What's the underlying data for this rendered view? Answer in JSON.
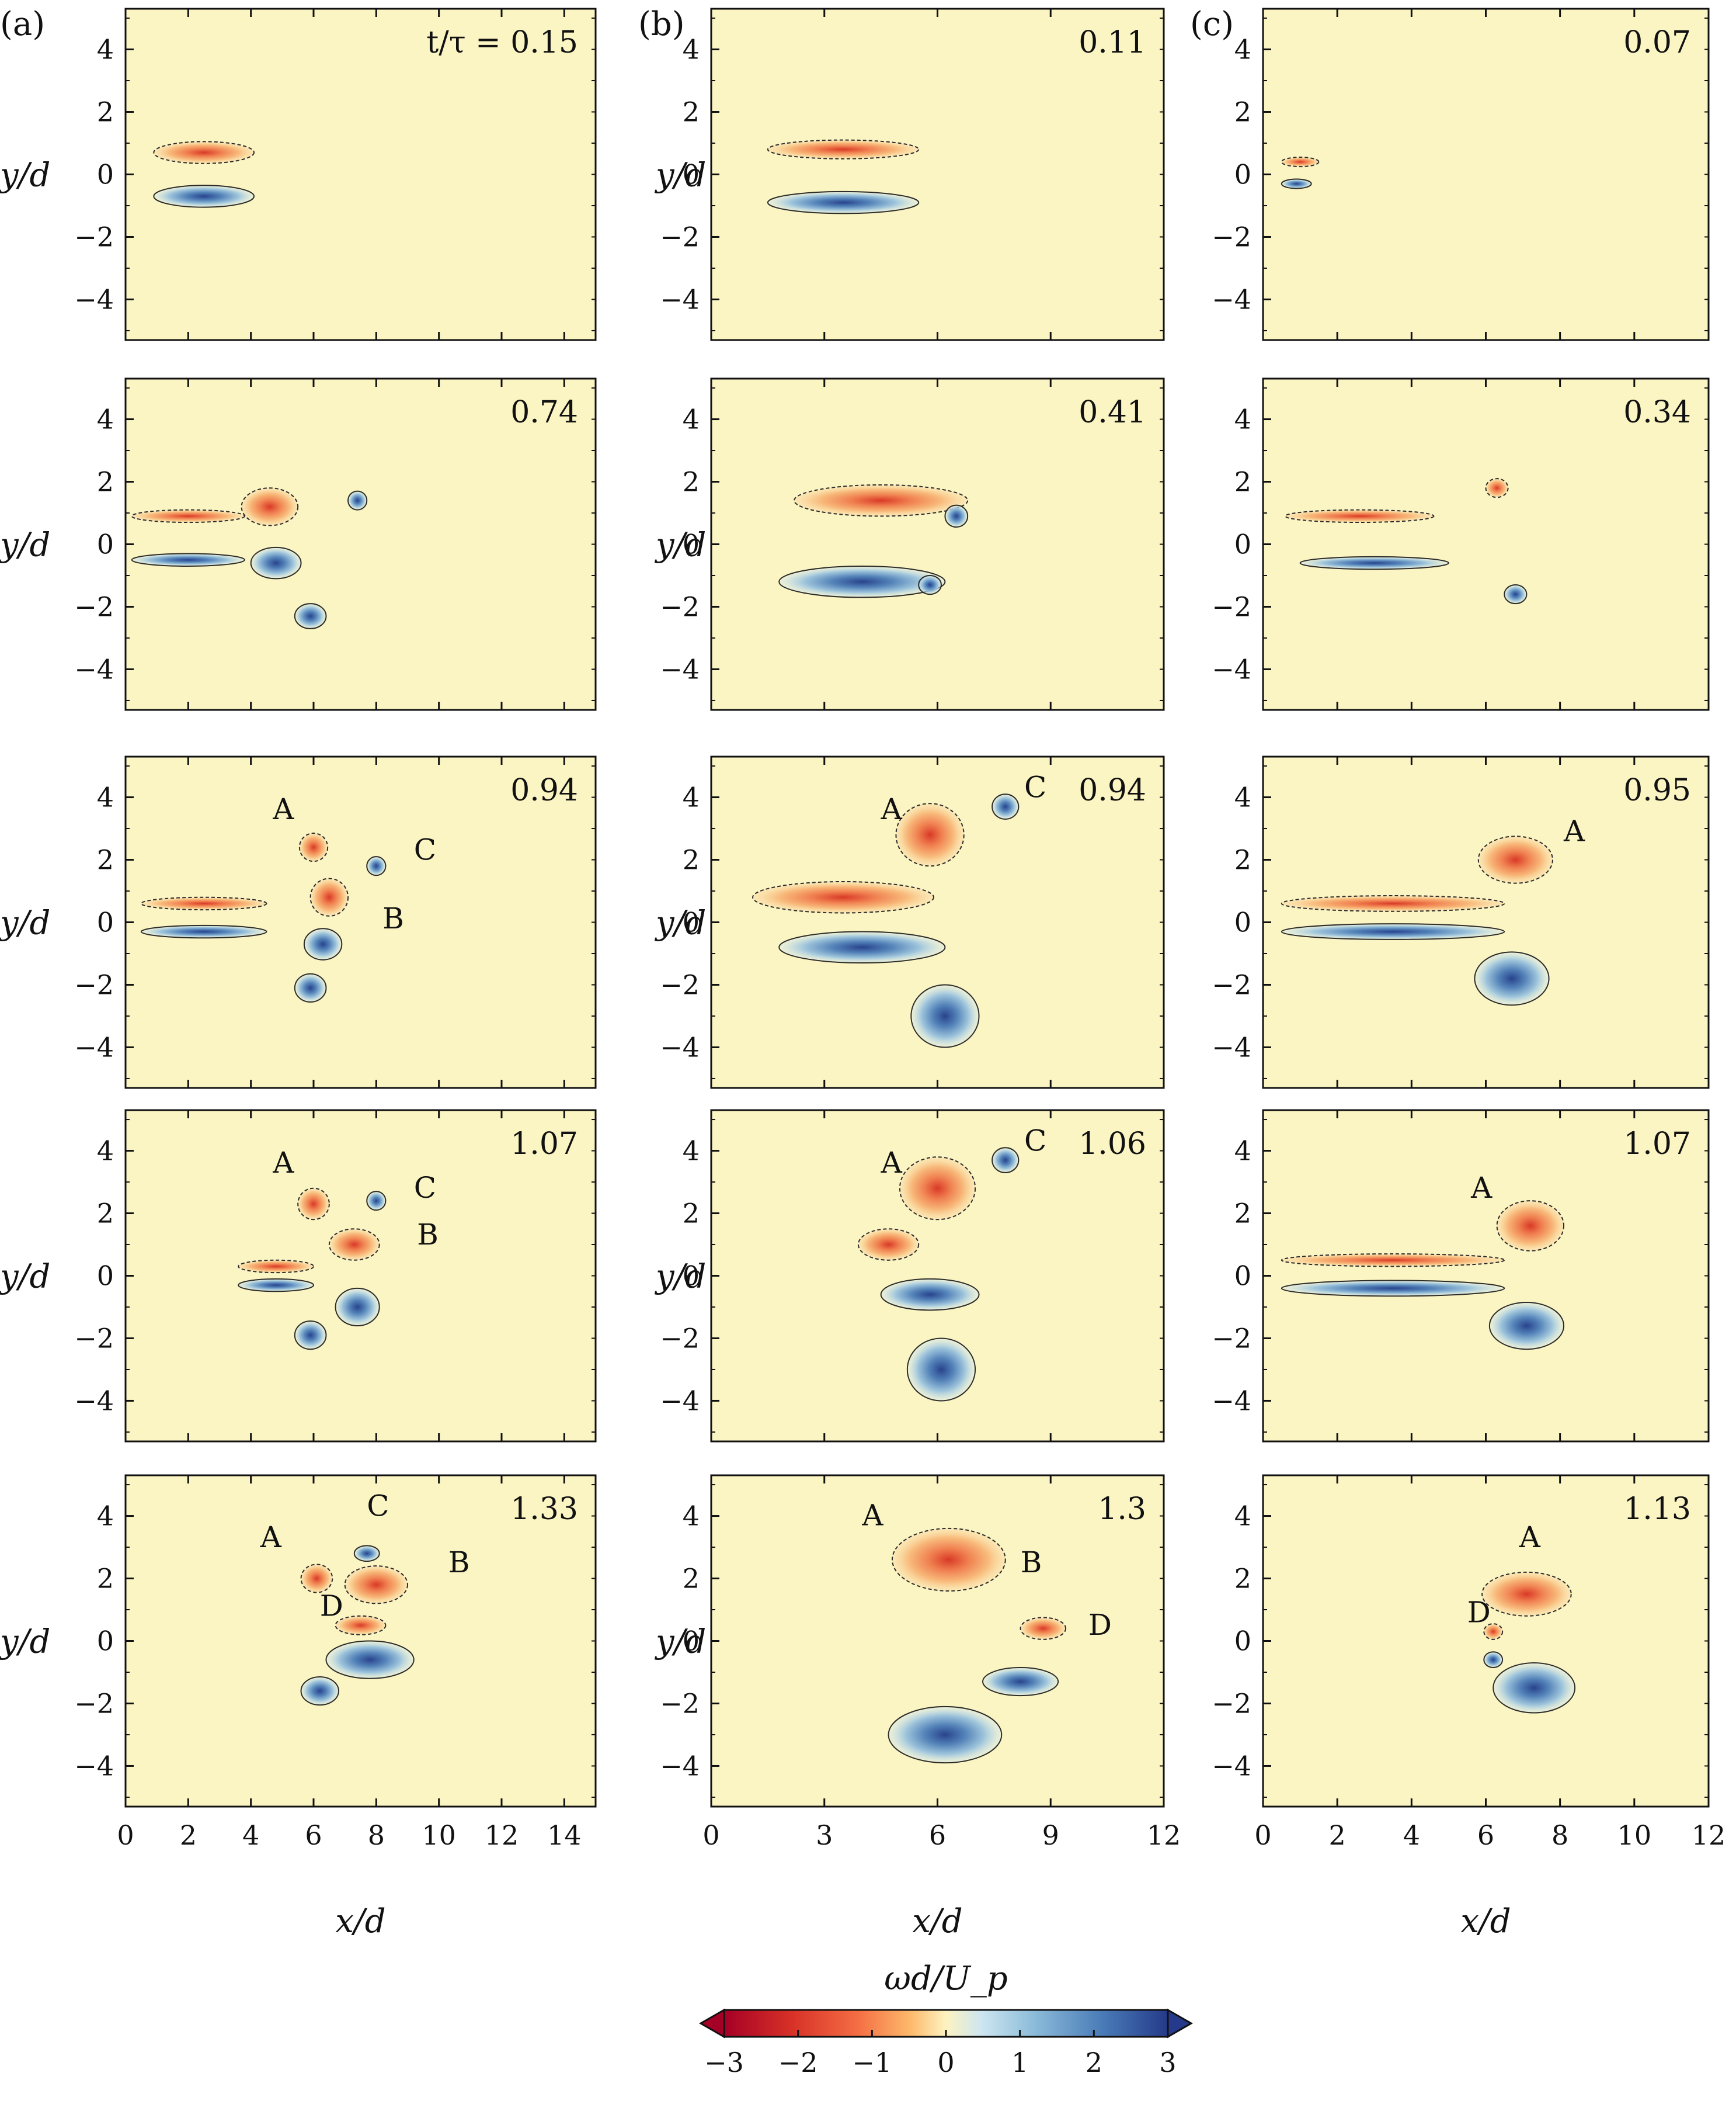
{
  "chart_data": {
    "type": "contour",
    "columns": [
      {
        "tag": "(a)",
        "xlim": [
          0,
          15
        ],
        "xticks": [
          "0",
          "2",
          "4",
          "6",
          "8",
          "10",
          "12",
          "14"
        ],
        "xtick_values": [
          0,
          2,
          4,
          6,
          8,
          10,
          12,
          14
        ],
        "panels": [
          {
            "time": "t/τ = 0.15",
            "labels": []
          },
          {
            "time": "0.74",
            "labels": []
          },
          {
            "time": "0.94",
            "labels": [
              {
                "text": "A",
                "x": 4.7,
                "y": 3.3
              },
              {
                "text": "C",
                "x": 9.2,
                "y": 2.0
              },
              {
                "text": "B",
                "x": 8.2,
                "y": -0.2
              }
            ]
          },
          {
            "time": "1.07",
            "labels": [
              {
                "text": "A",
                "x": 4.7,
                "y": 3.3
              },
              {
                "text": "C",
                "x": 9.2,
                "y": 2.5
              },
              {
                "text": "B",
                "x": 9.3,
                "y": 1.0
              }
            ]
          },
          {
            "time": "1.33",
            "labels": [
              {
                "text": "C",
                "x": 7.7,
                "y": 4.0
              },
              {
                "text": "A",
                "x": 4.3,
                "y": 3.0
              },
              {
                "text": "B",
                "x": 10.3,
                "y": 2.2
              },
              {
                "text": "D",
                "x": 6.2,
                "y": 0.8
              }
            ]
          }
        ]
      },
      {
        "tag": "(b)",
        "xlim": [
          0,
          12
        ],
        "xticks": [
          "0",
          "3",
          "6",
          "9",
          "12"
        ],
        "xtick_values": [
          0,
          3,
          6,
          9,
          12
        ],
        "panels": [
          {
            "time": "0.11",
            "labels": []
          },
          {
            "time": "0.41",
            "labels": []
          },
          {
            "time": "0.94",
            "labels": [
              {
                "text": "A",
                "x": 4.5,
                "y": 3.3
              },
              {
                "text": "C",
                "x": 8.3,
                "y": 4.0
              }
            ]
          },
          {
            "time": "1.06",
            "labels": [
              {
                "text": "A",
                "x": 4.5,
                "y": 3.3
              },
              {
                "text": "C",
                "x": 8.3,
                "y": 4.0
              }
            ]
          },
          {
            "time": "1.3",
            "labels": [
              {
                "text": "A",
                "x": 4.0,
                "y": 3.7
              },
              {
                "text": "B",
                "x": 8.2,
                "y": 2.2
              },
              {
                "text": "D",
                "x": 10.0,
                "y": 0.2
              }
            ]
          }
        ]
      },
      {
        "tag": "(c)",
        "xlim": [
          0,
          12
        ],
        "xticks": [
          "0",
          "2",
          "4",
          "6",
          "8",
          "10",
          "12"
        ],
        "xtick_values": [
          0,
          2,
          4,
          6,
          8,
          10,
          12
        ],
        "panels": [
          {
            "time": "0.07",
            "labels": []
          },
          {
            "time": "0.34",
            "labels": []
          },
          {
            "time": "0.95",
            "labels": [
              {
                "text": "A",
                "x": 8.1,
                "y": 2.6
              }
            ]
          },
          {
            "time": "1.07",
            "labels": [
              {
                "text": "A",
                "x": 5.6,
                "y": 2.5
              }
            ]
          },
          {
            "time": "1.13",
            "labels": [
              {
                "text": "A",
                "x": 6.9,
                "y": 3.0
              },
              {
                "text": "D",
                "x": 5.5,
                "y": 0.6
              }
            ]
          }
        ]
      }
    ],
    "ylim": [
      -5.3,
      5.3
    ],
    "yticks": [
      "4",
      "2",
      "0",
      "−2",
      "−4"
    ],
    "ytick_values": [
      4,
      2,
      0,
      -2,
      -4
    ],
    "ylabel": "y/d",
    "xlabel": "x/d",
    "colorbar": {
      "title": "ωd/U_p",
      "range": [
        -3,
        3
      ],
      "ticks": [
        "−3",
        "−2",
        "−1",
        "0",
        "1",
        "2",
        "3"
      ],
      "tick_values": [
        -3,
        -2,
        -1,
        0,
        1,
        2,
        3
      ]
    },
    "colors": {
      "background": "#fbf5c4",
      "negative": "#d73027",
      "positive": "#2c4f9e"
    }
  }
}
